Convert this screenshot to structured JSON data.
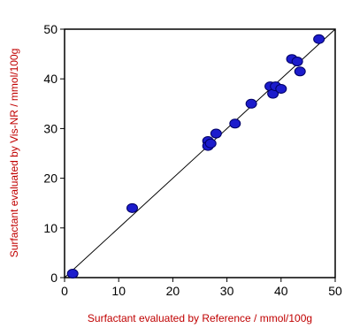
{
  "chart_data": {
    "type": "scatter",
    "title": "",
    "xlabel": "Surfactant evaluated by Reference / mmol/100g",
    "ylabel": "Surfactant evaluated by Vis-NR / mmol/100g",
    "xlim": [
      0,
      50
    ],
    "ylim": [
      0,
      50
    ],
    "xticks": [
      0,
      10,
      20,
      30,
      40,
      50
    ],
    "yticks": [
      0,
      10,
      20,
      30,
      40,
      50
    ],
    "grid": false,
    "legend": "none",
    "reference_line": {
      "from": [
        0,
        0
      ],
      "to": [
        50,
        50
      ]
    },
    "series": [
      {
        "points": [
          {
            "x": 1.5,
            "y": 0.8
          },
          {
            "x": 12.5,
            "y": 14.0
          },
          {
            "x": 26.5,
            "y": 27.5
          },
          {
            "x": 26.5,
            "y": 26.5
          },
          {
            "x": 27.0,
            "y": 27.0
          },
          {
            "x": 28.0,
            "y": 29.0
          },
          {
            "x": 31.5,
            "y": 31.0
          },
          {
            "x": 34.5,
            "y": 35.0
          },
          {
            "x": 38.0,
            "y": 38.5
          },
          {
            "x": 38.5,
            "y": 37.0
          },
          {
            "x": 39.0,
            "y": 38.5
          },
          {
            "x": 40.0,
            "y": 38.0
          },
          {
            "x": 42.0,
            "y": 44.0
          },
          {
            "x": 43.0,
            "y": 43.5
          },
          {
            "x": 43.5,
            "y": 41.5
          },
          {
            "x": 47.0,
            "y": 48.0
          }
        ]
      }
    ]
  },
  "colors": {
    "marker_fill": "#1c1ccc",
    "marker_stroke": "#000066",
    "axis_title": "#c00000",
    "frame": "#000000"
  }
}
